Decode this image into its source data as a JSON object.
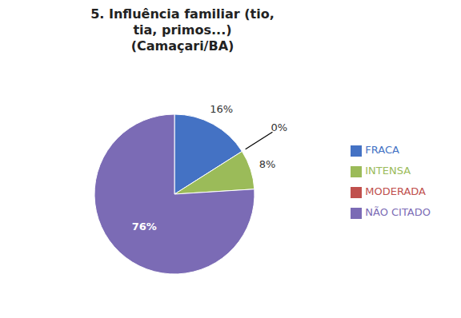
{
  "chart_data": {
    "type": "pie",
    "title": "5. Influência familiar (tio,\ntia, primos...)\n(Camaçari/BA)",
    "categories": [
      "FRACA",
      "MODERADA",
      "INTENSA",
      "NÃO CITADO"
    ],
    "values": [
      16,
      0,
      8,
      76
    ],
    "value_labels": [
      "16%",
      "0%",
      "8%",
      "76%"
    ],
    "colors": [
      "#4472C4",
      "#C0504D",
      "#9BBB59",
      "#7B6BB5"
    ],
    "data_labels": true,
    "legend": "right"
  }
}
